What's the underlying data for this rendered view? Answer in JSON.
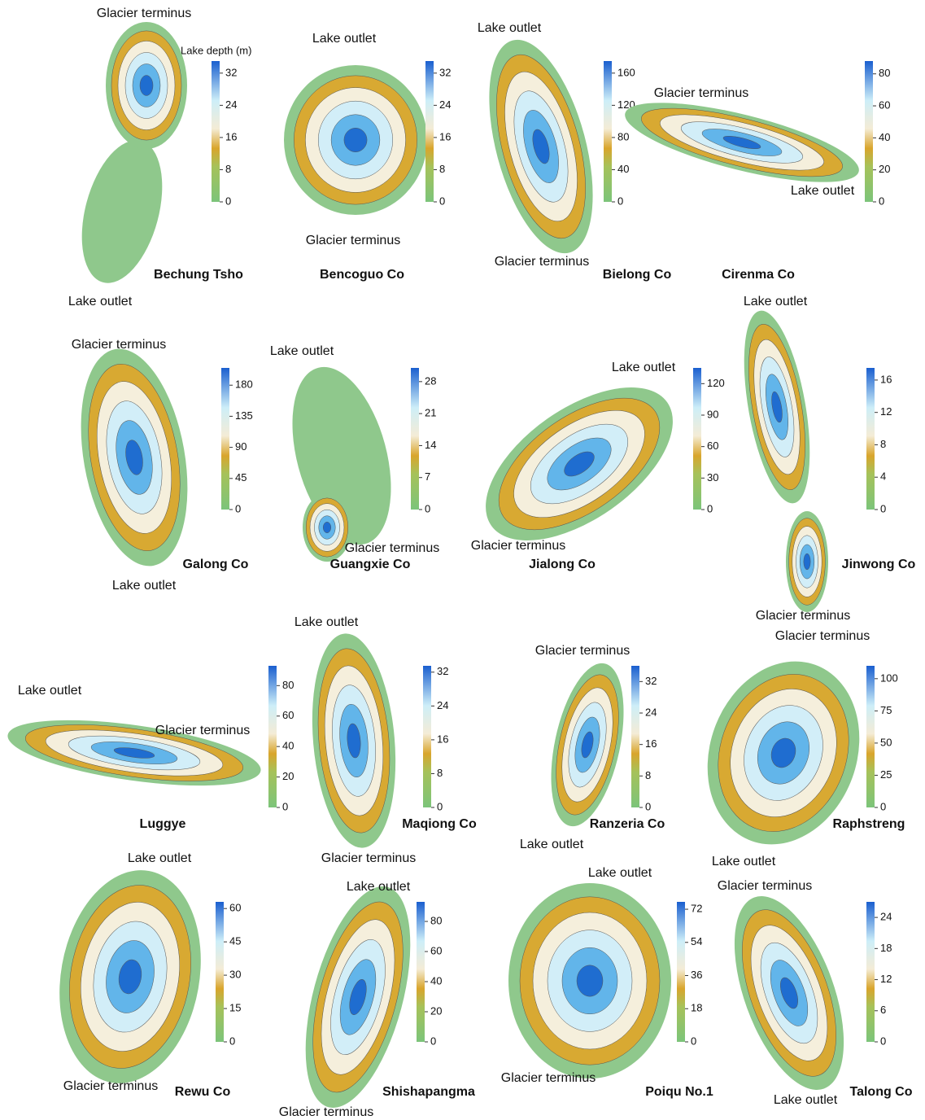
{
  "colorbar_title": "Lake depth (m)",
  "lakes": [
    {
      "name": "Bechung Tsho",
      "annotations": [
        "Glacier terminus",
        "Lake outlet"
      ],
      "colorbar": {
        "lim": [
          0,
          35
        ],
        "ticks": [
          0,
          8,
          16,
          24,
          32
        ]
      }
    },
    {
      "name": "Bencoguo Co",
      "annotations": [
        "Lake outlet",
        "Glacier terminus"
      ],
      "colorbar": {
        "lim": [
          0,
          35
        ],
        "ticks": [
          0,
          8,
          16,
          24,
          32
        ]
      }
    },
    {
      "name": "Bielong Co",
      "annotations": [
        "Lake outlet",
        "Glacier terminus"
      ],
      "colorbar": {
        "lim": [
          0,
          175
        ],
        "ticks": [
          0,
          40,
          80,
          120,
          160
        ]
      }
    },
    {
      "name": "Cirenma Co",
      "annotations": [
        "Glacier terminus",
        "Lake outlet"
      ],
      "colorbar": {
        "lim": [
          0,
          88
        ],
        "ticks": [
          0,
          20,
          40,
          60,
          80
        ]
      }
    },
    {
      "name": "Galong Co",
      "annotations": [
        "Glacier terminus",
        "Lake outlet"
      ],
      "colorbar": {
        "lim": [
          0,
          205
        ],
        "ticks": [
          0,
          45,
          90,
          135,
          180
        ]
      }
    },
    {
      "name": "Guangxie Co",
      "annotations": [
        "Lake outlet",
        "Glacier terminus"
      ],
      "colorbar": {
        "lim": [
          0,
          31
        ],
        "ticks": [
          0,
          7,
          14,
          21,
          28
        ]
      }
    },
    {
      "name": "Jialong Co",
      "annotations": [
        "Lake outlet",
        "Glacier terminus"
      ],
      "colorbar": {
        "lim": [
          0,
          135
        ],
        "ticks": [
          0,
          30,
          60,
          90,
          120
        ]
      }
    },
    {
      "name": "Jinwong Co",
      "annotations": [
        "Lake outlet",
        "Glacier terminus"
      ],
      "colorbar": {
        "lim": [
          0,
          17.5
        ],
        "ticks": [
          0,
          4,
          8,
          12,
          16
        ]
      }
    },
    {
      "name": "Luggye",
      "annotations": [
        "Lake outlet",
        "Glacier terminus"
      ],
      "colorbar": {
        "lim": [
          0,
          93
        ],
        "ticks": [
          0,
          20,
          40,
          60,
          80
        ]
      }
    },
    {
      "name": "Maqiong Co",
      "annotations": [
        "Lake outlet",
        "Glacier terminus"
      ],
      "colorbar": {
        "lim": [
          0,
          33.5
        ],
        "ticks": [
          0,
          8,
          16,
          24,
          32
        ]
      }
    },
    {
      "name": "Ranzeria Co",
      "annotations": [
        "Glacier terminus",
        "Lake outlet"
      ],
      "colorbar": {
        "lim": [
          0,
          36
        ],
        "ticks": [
          0,
          8,
          16,
          24,
          32
        ]
      }
    },
    {
      "name": "Raphstreng",
      "annotations": [
        "Glacier terminus",
        "Lake outlet"
      ],
      "colorbar": {
        "lim": [
          0,
          110
        ],
        "ticks": [
          0,
          25,
          50,
          75,
          100
        ]
      }
    },
    {
      "name": "Rewu Co",
      "annotations": [
        "Lake outlet",
        "Glacier terminus"
      ],
      "colorbar": {
        "lim": [
          0,
          63
        ],
        "ticks": [
          0,
          15,
          30,
          45,
          60
        ]
      }
    },
    {
      "name": "Shishapangma",
      "annotations": [
        "Lake outlet",
        "Glacier terminus"
      ],
      "colorbar": {
        "lim": [
          0,
          93
        ],
        "ticks": [
          0,
          20,
          40,
          60,
          80
        ]
      }
    },
    {
      "name": "Poiqu No.1",
      "annotations": [
        "Lake outlet",
        "Glacier terminus"
      ],
      "colorbar": {
        "lim": [
          0,
          76
        ],
        "ticks": [
          0,
          18,
          36,
          54,
          72
        ]
      }
    },
    {
      "name": "Talong Co",
      "annotations": [
        "Glacier terminus",
        "Lake outlet"
      ],
      "colorbar": {
        "lim": [
          0,
          27
        ],
        "ticks": [
          0,
          6,
          12,
          18,
          24
        ]
      }
    }
  ]
}
